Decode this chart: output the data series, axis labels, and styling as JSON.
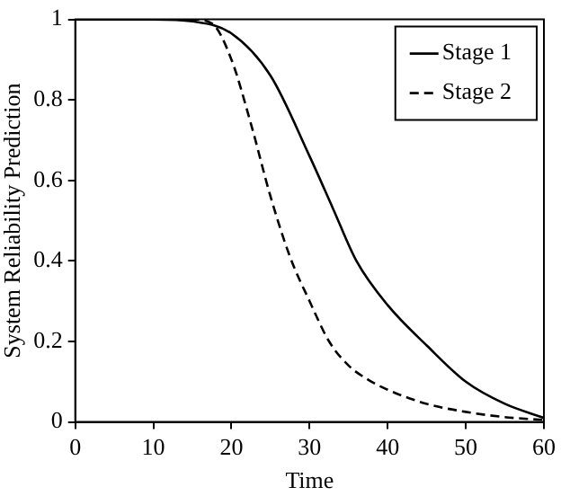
{
  "chart_data": {
    "type": "line",
    "xlabel": "Time",
    "ylabel": "System Reliability Prediction",
    "xlim": [
      0,
      60
    ],
    "xticks": [
      0,
      10,
      20,
      30,
      40,
      50,
      60
    ],
    "ylim": [
      0,
      1
    ],
    "yticks": [
      0,
      0.2,
      0.4,
      0.6,
      0.8,
      1
    ],
    "grid": false,
    "legend": "top right",
    "marker": "none",
    "series": [
      {
        "name": "Stage 1",
        "color": "#000000",
        "line_style": "solid",
        "x": [
          0,
          10,
          15,
          20,
          25,
          30,
          33,
          36,
          40,
          45,
          50,
          55,
          60
        ],
        "values": [
          1,
          1,
          0.995,
          0.965,
          0.86,
          0.66,
          0.53,
          0.4,
          0.29,
          0.19,
          0.1,
          0.045,
          0.01
        ]
      },
      {
        "name": "Stage 2",
        "color": "#000000",
        "line_style": "dashed",
        "x": [
          0,
          15,
          17.5,
          20,
          22.5,
          25,
          27.5,
          30,
          32.5,
          35,
          37.5,
          40,
          45,
          50,
          55,
          60
        ],
        "values": [
          1,
          1,
          0.99,
          0.9,
          0.74,
          0.56,
          0.41,
          0.3,
          0.2,
          0.14,
          0.105,
          0.08,
          0.045,
          0.025,
          0.012,
          0.005
        ]
      }
    ]
  }
}
